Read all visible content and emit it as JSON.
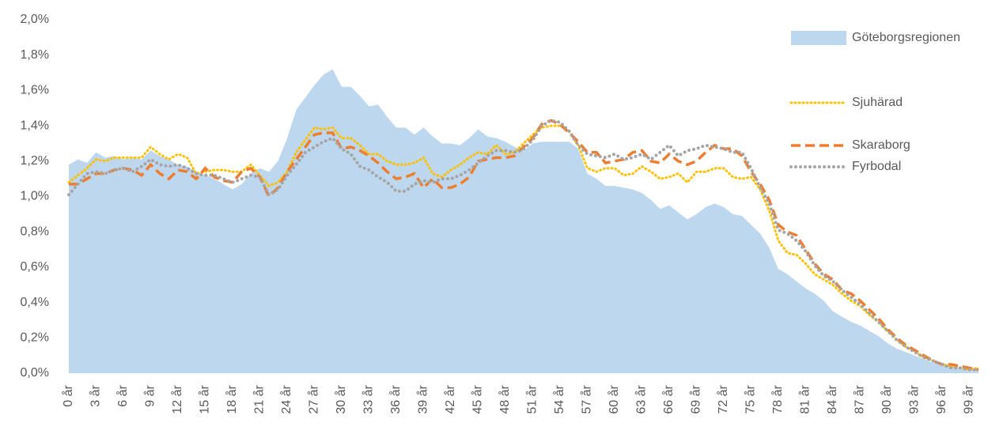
{
  "chart_data": {
    "type": "line",
    "categories": [
      "0 år",
      null,
      null,
      "3 år",
      null,
      null,
      "6 år",
      null,
      null,
      "9 år",
      null,
      null,
      "12 år",
      null,
      null,
      "15 år",
      null,
      null,
      "18 år",
      null,
      null,
      "21 år",
      null,
      null,
      "24 år",
      null,
      null,
      "27 år",
      null,
      null,
      "30 år",
      null,
      null,
      "33 år",
      null,
      null,
      "36 år",
      null,
      null,
      "39 år",
      null,
      null,
      "42 år",
      null,
      null,
      "45 år",
      null,
      null,
      "48 år",
      null,
      null,
      "51 år",
      null,
      null,
      "54 år",
      null,
      null,
      "57 år",
      null,
      null,
      "60 år",
      null,
      null,
      "63 år",
      null,
      null,
      "66 år",
      null,
      null,
      "69 år",
      null,
      null,
      "72 år",
      null,
      null,
      "75 år",
      null,
      null,
      "78 år",
      null,
      null,
      "81 år",
      null,
      null,
      "84 år",
      null,
      null,
      "87 år",
      null,
      null,
      "90 år",
      null,
      null,
      "93 år",
      null,
      null,
      "96 år",
      null,
      null,
      "99 år",
      null
    ],
    "ylim": [
      0,
      2.0
    ],
    "yticks": [
      {
        "value": 0,
        "label": "0,0%"
      },
      {
        "value": 0.2,
        "label": "0,2%"
      },
      {
        "value": 0.4,
        "label": "0,4%"
      },
      {
        "value": 0.6,
        "label": "0,6%"
      },
      {
        "value": 0.8,
        "label": "0,8%"
      },
      {
        "value": 1.0,
        "label": "1,0%"
      },
      {
        "value": 1.2,
        "label": "1,2%"
      },
      {
        "value": 1.4,
        "label": "1,4%"
      },
      {
        "value": 1.6,
        "label": "1,6%"
      },
      {
        "value": 1.8,
        "label": "1,8%"
      },
      {
        "value": 2.0,
        "label": "2,0%"
      }
    ],
    "legend": "right",
    "series": [
      {
        "name": "Göteborgsregionen",
        "type": "area",
        "color": "#bdd7ee",
        "style": "solid",
        "values": [
          1.18,
          1.21,
          1.19,
          1.25,
          1.22,
          1.23,
          1.21,
          1.22,
          1.21,
          1.26,
          1.23,
          1.21,
          1.18,
          1.17,
          1.14,
          1.12,
          1.1,
          1.07,
          1.04,
          1.07,
          1.13,
          1.16,
          1.14,
          1.2,
          1.33,
          1.49,
          1.56,
          1.63,
          1.69,
          1.72,
          1.62,
          1.62,
          1.57,
          1.51,
          1.52,
          1.45,
          1.39,
          1.39,
          1.35,
          1.39,
          1.34,
          1.3,
          1.3,
          1.29,
          1.33,
          1.38,
          1.34,
          1.33,
          1.31,
          1.28,
          1.26,
          1.3,
          1.31,
          1.31,
          1.31,
          1.31,
          1.27,
          1.13,
          1.1,
          1.06,
          1.06,
          1.05,
          1.04,
          1.02,
          0.98,
          0.93,
          0.95,
          0.91,
          0.87,
          0.9,
          0.94,
          0.96,
          0.94,
          0.9,
          0.89,
          0.84,
          0.79,
          0.71,
          0.59,
          0.56,
          0.52,
          0.48,
          0.45,
          0.41,
          0.35,
          0.32,
          0.29,
          0.27,
          0.24,
          0.21,
          0.17,
          0.14,
          0.12,
          0.1,
          0.08,
          0.06,
          0.05,
          0.04,
          0.03,
          0.02,
          0.02
        ]
      },
      {
        "name": "Sjuhärad",
        "type": "line",
        "color": "#ffc000",
        "style": "dotted",
        "values": [
          1.08,
          1.12,
          1.16,
          1.21,
          1.2,
          1.22,
          1.22,
          1.22,
          1.22,
          1.28,
          1.24,
          1.21,
          1.24,
          1.22,
          1.13,
          1.14,
          1.15,
          1.15,
          1.14,
          1.14,
          1.18,
          1.12,
          1.06,
          1.08,
          1.14,
          1.25,
          1.32,
          1.39,
          1.38,
          1.39,
          1.33,
          1.33,
          1.29,
          1.24,
          1.24,
          1.2,
          1.18,
          1.18,
          1.19,
          1.22,
          1.13,
          1.11,
          1.15,
          1.18,
          1.22,
          1.25,
          1.24,
          1.29,
          1.24,
          1.25,
          1.3,
          1.35,
          1.39,
          1.4,
          1.4,
          1.37,
          1.29,
          1.16,
          1.14,
          1.16,
          1.16,
          1.12,
          1.13,
          1.17,
          1.14,
          1.1,
          1.11,
          1.13,
          1.08,
          1.14,
          1.14,
          1.16,
          1.16,
          1.11,
          1.1,
          1.11,
          1.04,
          0.92,
          0.75,
          0.68,
          0.67,
          0.62,
          0.56,
          0.53,
          0.5,
          0.45,
          0.41,
          0.38,
          0.33,
          0.29,
          0.24,
          0.19,
          0.15,
          0.12,
          0.09,
          0.07,
          0.05,
          0.04,
          0.03,
          0.02,
          0.03
        ]
      },
      {
        "name": "Skaraborg",
        "type": "line",
        "color": "#ed7d31",
        "style": "dashed",
        "values": [
          1.07,
          1.07,
          1.1,
          1.13,
          1.13,
          1.15,
          1.16,
          1.15,
          1.12,
          1.18,
          1.13,
          1.1,
          1.15,
          1.14,
          1.1,
          1.16,
          1.11,
          1.09,
          1.08,
          1.14,
          1.16,
          1.11,
          1.0,
          1.05,
          1.14,
          1.21,
          1.28,
          1.35,
          1.36,
          1.36,
          1.27,
          1.28,
          1.26,
          1.23,
          1.19,
          1.14,
          1.1,
          1.11,
          1.13,
          1.05,
          1.1,
          1.05,
          1.05,
          1.07,
          1.11,
          1.2,
          1.21,
          1.22,
          1.22,
          1.23,
          1.28,
          1.33,
          1.41,
          1.43,
          1.41,
          1.36,
          1.31,
          1.25,
          1.25,
          1.19,
          1.2,
          1.21,
          1.25,
          1.26,
          1.2,
          1.19,
          1.24,
          1.2,
          1.18,
          1.2,
          1.25,
          1.29,
          1.27,
          1.27,
          1.23,
          1.14,
          1.07,
          0.98,
          0.84,
          0.8,
          0.78,
          0.7,
          0.62,
          0.56,
          0.53,
          0.47,
          0.45,
          0.41,
          0.36,
          0.31,
          0.25,
          0.2,
          0.16,
          0.13,
          0.1,
          0.07,
          0.05,
          0.05,
          0.04,
          0.03,
          0.02
        ]
      },
      {
        "name": "Fyrbodal",
        "type": "line",
        "color": "#a5a5a5",
        "style": "round-dot",
        "values": [
          1.01,
          1.07,
          1.13,
          1.14,
          1.13,
          1.15,
          1.16,
          1.14,
          1.17,
          1.21,
          1.18,
          1.17,
          1.18,
          1.16,
          1.13,
          1.12,
          1.12,
          1.1,
          1.08,
          1.1,
          1.12,
          1.11,
          1.01,
          1.04,
          1.12,
          1.18,
          1.25,
          1.28,
          1.31,
          1.33,
          1.27,
          1.24,
          1.17,
          1.15,
          1.11,
          1.08,
          1.03,
          1.03,
          1.07,
          1.09,
          1.08,
          1.1,
          1.1,
          1.12,
          1.15,
          1.19,
          1.23,
          1.26,
          1.26,
          1.25,
          1.27,
          1.32,
          1.4,
          1.43,
          1.42,
          1.37,
          1.29,
          1.24,
          1.23,
          1.22,
          1.24,
          1.21,
          1.22,
          1.24,
          1.21,
          1.25,
          1.29,
          1.23,
          1.26,
          1.27,
          1.29,
          1.28,
          1.27,
          1.25,
          1.25,
          1.16,
          1.05,
          0.96,
          0.81,
          0.79,
          0.75,
          0.69,
          0.61,
          0.55,
          0.52,
          0.47,
          0.43,
          0.39,
          0.34,
          0.29,
          0.24,
          0.19,
          0.15,
          0.12,
          0.09,
          0.07,
          0.05,
          0.03,
          0.03,
          0.02,
          0.02
        ]
      }
    ]
  }
}
